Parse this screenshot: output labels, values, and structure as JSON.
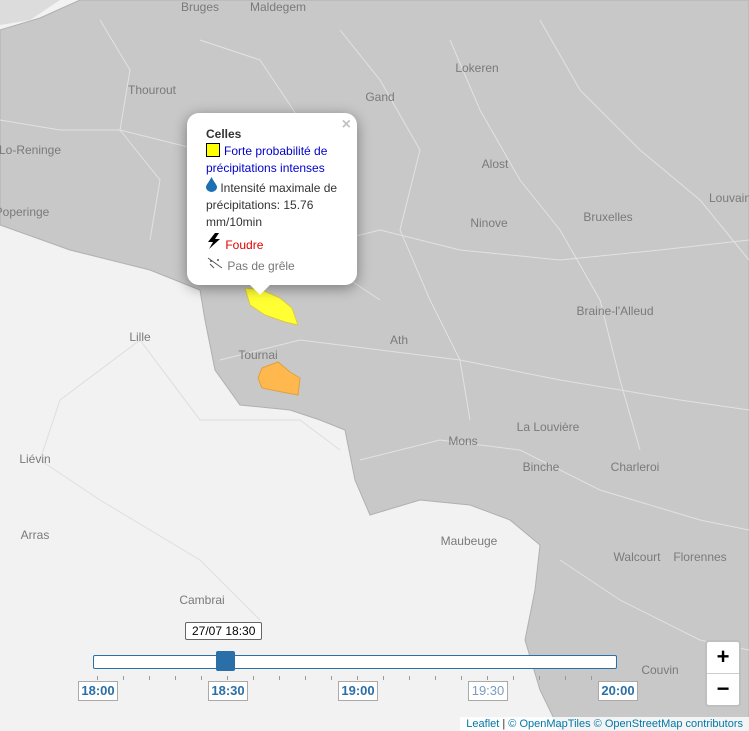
{
  "map_labels": [
    "Bruges",
    "Maldegem",
    "Lokeren",
    "Thourout",
    "Gand",
    "Lo-Reninge",
    "Alost",
    "Louvain",
    "Poperinge",
    "Ninove",
    "Bruxelles",
    "Braine-l'Alleud",
    "Lille",
    "Ath",
    "Tournai",
    "Mons",
    "La Louvière",
    "Binche",
    "Charleroi",
    "Liévin",
    "Arras",
    "Maubeuge",
    "Walcourt",
    "Florennes",
    "Cambrai",
    "Couvin"
  ],
  "popup": {
    "title": "Celles",
    "close": "×",
    "warning": "Forte probabilité de précipitations intenses",
    "rain": "Intensité maximale de précipitations: 15.76 mm/10min",
    "lightning": "Foudre",
    "hail": "Pas de grêle"
  },
  "timeline": {
    "current": "27/07 18:30",
    "labels": [
      "18:00",
      "18:30",
      "19:00",
      "19:30",
      "20:00"
    ]
  },
  "zoom": {
    "in": "+",
    "out": "−"
  },
  "attribution": {
    "leaflet": "Leaflet",
    "separator": "|",
    "openmaptiles": "© OpenMapTiles",
    "osm": "© OpenStreetMap contributors"
  }
}
